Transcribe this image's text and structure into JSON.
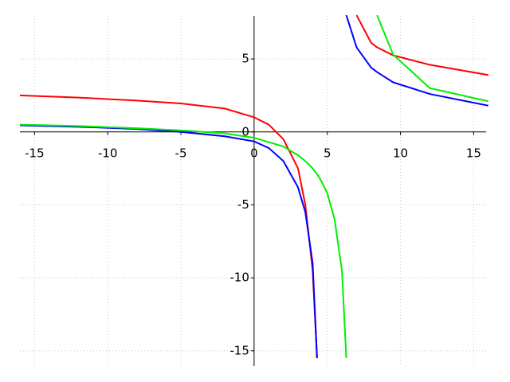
{
  "chart_data": {
    "type": "line",
    "x": [
      -16,
      -12,
      -8,
      -5,
      -2,
      0,
      1,
      2,
      3,
      3.5,
      4,
      4.3,
      4.5,
      5,
      5.5,
      6,
      6.3,
      7,
      8,
      8.4,
      9.5,
      12,
      16
    ],
    "series": [
      {
        "color": "#ff0000",
        "values": [
          2.5,
          2.35,
          2.15,
          1.95,
          1.6,
          1.0,
          0.5,
          -0.5,
          -2.5,
          -5,
          -9.5,
          -15.5,
          null,
          null,
          null,
          null,
          null,
          8,
          6.1,
          5.8,
          5.25,
          4.6,
          3.9
        ]
      },
      {
        "color": "#0000ff",
        "values": [
          0.45,
          0.35,
          0.2,
          0,
          -0.3,
          -0.65,
          -1.1,
          -2,
          -3.8,
          -5.5,
          -9,
          -15.5,
          null,
          null,
          null,
          null,
          8,
          5.8,
          4.4,
          4.1,
          3.4,
          2.6,
          1.8
        ]
      },
      {
        "color": "#00ee00",
        "values": [
          0.5,
          0.4,
          0.25,
          0.1,
          -0.1,
          -0.4,
          -0.7,
          -1,
          -1.6,
          -2,
          -2.5,
          -2.9,
          -3.2,
          -4.2,
          -6,
          -9.5,
          -15.5,
          null,
          null,
          8,
          5.3,
          3.0,
          2.1
        ]
      }
    ],
    "xlim": [
      -16,
      15.85
    ],
    "ylim": [
      -16.05,
      7.95
    ],
    "xticks": [
      -15,
      -10,
      -5,
      0,
      5,
      10,
      15
    ],
    "yticks": [
      -15,
      -10,
      -5,
      0,
      5
    ],
    "grid": true
  }
}
